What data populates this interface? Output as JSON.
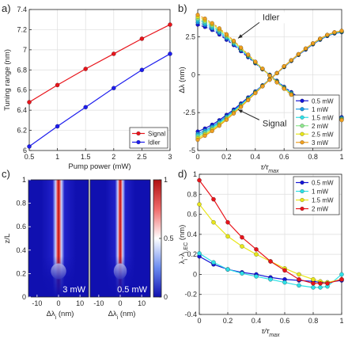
{
  "figure": {
    "panel_labels": [
      "a)",
      "b)",
      "c)",
      "d)"
    ]
  },
  "chart_data": [
    {
      "id": "a",
      "type": "line",
      "xlabel": "Pump power (mW)",
      "ylabel": "Tuning range (nm)",
      "xlim": [
        0.5,
        3
      ],
      "ylim": [
        6,
        7.4
      ],
      "xticks": [
        0.5,
        1,
        1.5,
        2,
        2.5,
        3
      ],
      "yticks": [
        6,
        6.2,
        6.4,
        6.6,
        6.8,
        7,
        7.2,
        7.4
      ],
      "grid": true,
      "legend_position": "bottom-right",
      "x": [
        0.5,
        1,
        1.5,
        2,
        2.5,
        3
      ],
      "series": [
        {
          "name": "Signal",
          "color": "#e8141b",
          "values": [
            6.48,
            6.65,
            6.81,
            6.96,
            7.11,
            7.25
          ]
        },
        {
          "name": "Idler",
          "color": "#1d1ded",
          "values": [
            6.04,
            6.24,
            6.43,
            6.62,
            6.8,
            6.96
          ]
        }
      ]
    },
    {
      "id": "b",
      "type": "line",
      "xlabel": "τ/τmax",
      "ylabel": "Δλ (nm)",
      "xlim": [
        0,
        1
      ],
      "ylim": [
        -5,
        4.3
      ],
      "xticks": [
        0,
        0.2,
        0.4,
        0.6,
        0.8,
        1
      ],
      "yticks": [
        -5,
        -2.5,
        0,
        2.5
      ],
      "grid": true,
      "legend_position": "bottom-right",
      "annotations": [
        {
          "text": "Idler",
          "x": 0.45,
          "y": 3.6,
          "arrow_to": [
            0.28,
            2.4
          ]
        },
        {
          "text": "Signal",
          "x": 0.45,
          "y": -3.4,
          "arrow_to": [
            0.28,
            -2.3
          ]
        }
      ],
      "x": [
        0,
        0.05,
        0.1,
        0.15,
        0.2,
        0.25,
        0.3,
        0.35,
        0.4,
        0.45,
        0.5,
        0.55,
        0.6,
        0.65,
        0.7,
        0.75,
        0.8,
        0.85,
        0.9,
        0.95,
        1
      ],
      "series": [
        {
          "name": "0.5 mW",
          "color": "#1414d6",
          "idler": [
            3.3,
            3.15,
            2.95,
            2.65,
            2.3,
            1.95,
            1.55,
            1.15,
            0.75,
            0.35,
            0.0,
            -0.4,
            -0.8,
            -1.15,
            -1.5,
            -1.85,
            -2.15,
            -2.4,
            -2.6,
            -2.72,
            -2.8
          ],
          "signal": [
            -3.75,
            -3.55,
            -3.3,
            -3.0,
            -2.65,
            -2.3,
            -1.9,
            -1.5,
            -1.1,
            -0.7,
            -0.3,
            0.1,
            0.5,
            0.9,
            1.3,
            1.65,
            2.0,
            2.3,
            2.55,
            2.72,
            2.8
          ]
        },
        {
          "name": "1 mW",
          "color": "#1a9ce6",
          "idler": [
            3.45,
            3.28,
            3.05,
            2.75,
            2.4,
            2.02,
            1.62,
            1.2,
            0.78,
            0.36,
            -0.02,
            -0.42,
            -0.83,
            -1.2,
            -1.56,
            -1.9,
            -2.2,
            -2.45,
            -2.65,
            -2.78,
            -2.85
          ],
          "signal": [
            -3.9,
            -3.68,
            -3.42,
            -3.1,
            -2.75,
            -2.38,
            -1.97,
            -1.55,
            -1.13,
            -0.72,
            -0.3,
            0.1,
            0.52,
            0.92,
            1.32,
            1.68,
            2.02,
            2.32,
            2.57,
            2.74,
            2.82
          ]
        },
        {
          "name": "1.5 mW",
          "color": "#2fe0e6",
          "idler": [
            3.6,
            3.4,
            3.15,
            2.85,
            2.48,
            2.08,
            1.67,
            1.24,
            0.8,
            0.37,
            -0.04,
            -0.45,
            -0.86,
            -1.24,
            -1.6,
            -1.94,
            -2.24,
            -2.5,
            -2.7,
            -2.82,
            -2.9
          ],
          "signal": [
            -4.0,
            -3.78,
            -3.5,
            -3.17,
            -2.82,
            -2.43,
            -2.02,
            -1.59,
            -1.16,
            -0.73,
            -0.31,
            0.1,
            0.53,
            0.93,
            1.33,
            1.7,
            2.04,
            2.35,
            2.6,
            2.76,
            2.84
          ]
        },
        {
          "name": "2 mW",
          "color": "#8fe88f",
          "idler": [
            3.7,
            3.5,
            3.24,
            2.92,
            2.55,
            2.14,
            1.71,
            1.27,
            0.82,
            0.38,
            -0.05,
            -0.47,
            -0.89,
            -1.28,
            -1.64,
            -1.97,
            -2.27,
            -2.53,
            -2.73,
            -2.86,
            -2.93
          ],
          "signal": [
            -4.1,
            -3.86,
            -3.57,
            -3.24,
            -2.87,
            -2.48,
            -2.06,
            -1.62,
            -1.18,
            -0.75,
            -0.32,
            0.1,
            0.54,
            0.94,
            1.34,
            1.71,
            2.05,
            2.36,
            2.61,
            2.78,
            2.86
          ]
        },
        {
          "name": "2.5 mW",
          "color": "#e8e61a",
          "idler": [
            3.82,
            3.6,
            3.33,
            3.0,
            2.62,
            2.2,
            1.76,
            1.3,
            0.84,
            0.39,
            -0.06,
            -0.49,
            -0.91,
            -1.3,
            -1.67,
            -2.0,
            -2.3,
            -2.56,
            -2.76,
            -2.9,
            -2.97
          ],
          "signal": [
            -4.2,
            -3.95,
            -3.65,
            -3.3,
            -2.93,
            -2.52,
            -2.1,
            -1.65,
            -1.2,
            -0.76,
            -0.33,
            0.1,
            0.55,
            0.95,
            1.35,
            1.72,
            2.06,
            2.37,
            2.62,
            2.79,
            2.88
          ]
        },
        {
          "name": "3 mW",
          "color": "#f0a020",
          "idler": [
            3.95,
            3.7,
            3.4,
            3.06,
            2.67,
            2.24,
            1.79,
            1.33,
            0.86,
            0.4,
            -0.07,
            -0.51,
            -0.93,
            -1.33,
            -1.7,
            -2.03,
            -2.33,
            -2.59,
            -2.8,
            -2.93,
            -3.0
          ],
          "signal": [
            -4.3,
            -4.03,
            -3.72,
            -3.37,
            -2.98,
            -2.56,
            -2.13,
            -1.68,
            -1.22,
            -0.77,
            -0.34,
            0.1,
            0.56,
            0.96,
            1.36,
            1.73,
            2.07,
            2.38,
            2.63,
            2.8,
            2.9
          ]
        }
      ]
    },
    {
      "id": "c",
      "type": "heatmap",
      "ylabel": "z/L",
      "yticks": [
        0,
        0.2,
        0.4,
        0.6,
        0.8,
        1
      ],
      "ylim": [
        0,
        1
      ],
      "colorbar": {
        "min": 0,
        "max": 1,
        "ticks": [
          0,
          0.5,
          1
        ],
        "colormap": "blue-white-red"
      },
      "panels": [
        {
          "label": "3 mW",
          "xlabel": "Δλi (nm)",
          "xticks": [
            -10,
            0,
            10
          ],
          "xlim": [
            -14,
            14
          ],
          "width_scale": 1.0
        },
        {
          "label": "0.5 mW",
          "xlabel": "Δλi (nm)",
          "xticks": [
            -10,
            0,
            10
          ],
          "xlim": [
            -14,
            14
          ],
          "width_scale": 0.85
        }
      ]
    },
    {
      "id": "d",
      "type": "line",
      "xlabel": "τ/τmax",
      "ylabel": "λi-λi,EC (nm)",
      "xlim": [
        0,
        1
      ],
      "ylim": [
        -0.4,
        1
      ],
      "xticks": [
        0,
        0.2,
        0.4,
        0.6,
        0.8,
        1
      ],
      "yticks": [
        -0.4,
        -0.2,
        0,
        0.2,
        0.4,
        0.6,
        0.8,
        1
      ],
      "grid": true,
      "legend_position": "top-right",
      "x": [
        0,
        0.1,
        0.2,
        0.3,
        0.4,
        0.5,
        0.6,
        0.7,
        0.8,
        0.85,
        0.9,
        1
      ],
      "series": [
        {
          "name": "0.5 mW",
          "color": "#1414d6",
          "values": [
            0.18,
            0.1,
            0.05,
            0.02,
            0.0,
            -0.03,
            -0.05,
            -0.06,
            -0.07,
            -0.08,
            -0.08,
            -0.06
          ]
        },
        {
          "name": "1 mW",
          "color": "#2fe0e6",
          "values": [
            0.21,
            0.12,
            0.05,
            0.01,
            -0.02,
            -0.05,
            -0.08,
            -0.11,
            -0.13,
            -0.13,
            -0.12,
            0.0
          ]
        },
        {
          "name": "1.5 mW",
          "color": "#e8e61a",
          "values": [
            0.7,
            0.52,
            0.38,
            0.28,
            0.2,
            0.13,
            0.06,
            0.0,
            -0.05,
            -0.07,
            -0.08,
            -0.05
          ]
        },
        {
          "name": "2 mW",
          "color": "#e8141b",
          "values": [
            0.94,
            0.75,
            0.52,
            0.37,
            0.25,
            0.13,
            0.04,
            -0.05,
            -0.09,
            -0.09,
            -0.09,
            -0.05
          ]
        }
      ]
    }
  ]
}
